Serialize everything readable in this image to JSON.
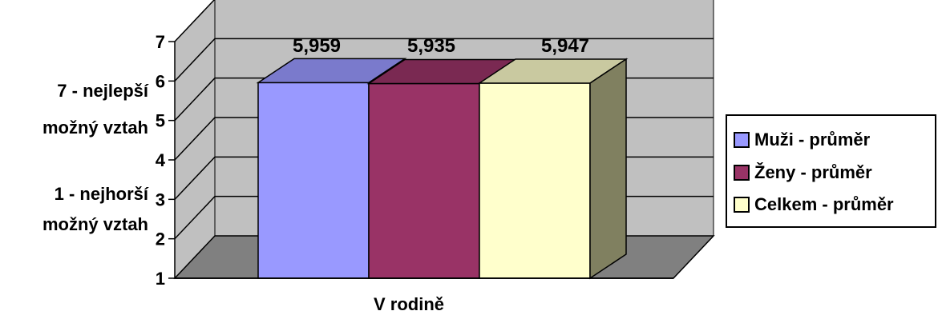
{
  "chart_data": {
    "type": "bar",
    "three_d": true,
    "categories": [
      "V rodině"
    ],
    "series": [
      {
        "name": "Muži - průměr",
        "values": [
          5.959
        ],
        "label": "5,959",
        "color": "#9999ff",
        "top_color": "#7a7acc",
        "side_color": "#6b6bb3"
      },
      {
        "name": "Ženy - průměr",
        "values": [
          5.935
        ],
        "label": "5,935",
        "color": "#993366",
        "top_color": "#7a2952",
        "side_color": "#6b2447"
      },
      {
        "name": "Celkem - průměr",
        "values": [
          5.947
        ],
        "label": "5,947",
        "color": "#ffffcc",
        "top_color": "#c9c9a0",
        "side_color": "#808060"
      }
    ],
    "ylim": [
      1,
      7
    ],
    "yticks": [
      "1",
      "2",
      "3",
      "4",
      "5",
      "6",
      "7"
    ],
    "y_annotations": {
      "top": "7 - nejlepší možný vztah",
      "top_line1": "7 - nejlepší",
      "top_line2": "možný vztah",
      "bottom_line1": "1 - nejhorší",
      "bottom_line2": "možný vztah"
    },
    "xlabel": "V rodině",
    "grid": true,
    "legend_position": "right",
    "colors": {
      "wall": "#c0c0c0",
      "floor": "#808080",
      "grid": "#000000"
    }
  }
}
